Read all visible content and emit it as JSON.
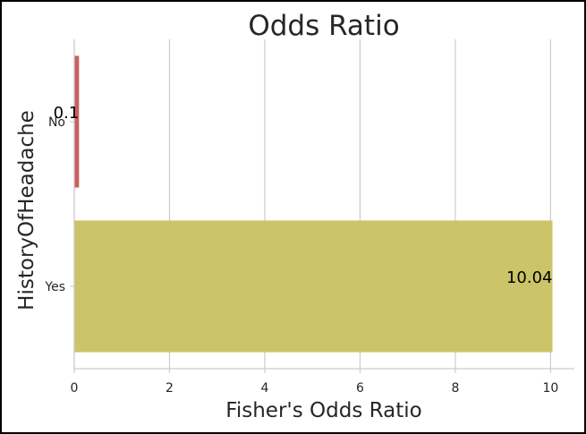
{
  "chart_data": {
    "type": "bar",
    "orientation": "horizontal",
    "title": "Odds Ratio",
    "xlabel": "Fisher's Odds Ratio",
    "ylabel": "HistoryOfHeadache",
    "categories": [
      "No",
      "Yes"
    ],
    "values": [
      0.1,
      10.04
    ],
    "data_labels": [
      "0.1",
      "10.04"
    ],
    "bar_colors": [
      "#c9615e",
      "#cbc468"
    ],
    "xlim": [
      0,
      10.5
    ],
    "x_ticks": [
      0,
      2,
      4,
      6,
      8,
      10
    ],
    "grid": "vertical",
    "legend": "none"
  }
}
